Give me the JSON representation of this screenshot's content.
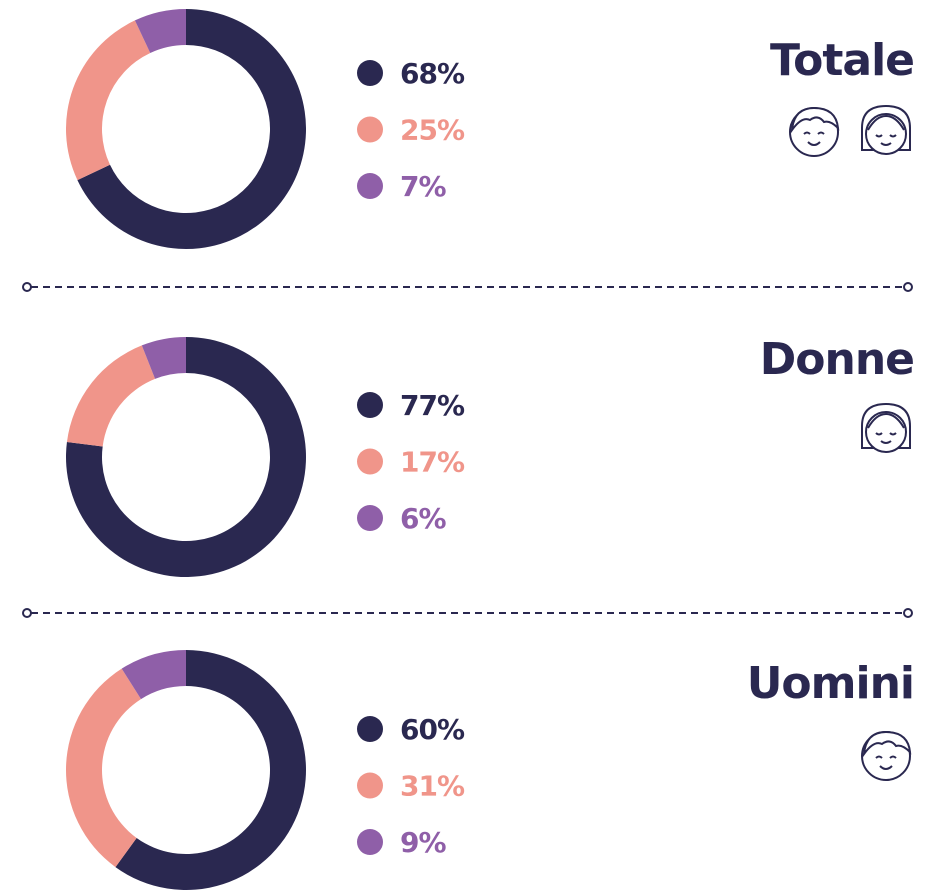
{
  "chart_data": [
    {
      "type": "pie",
      "title": "Totale",
      "values": [
        68,
        25,
        7
      ],
      "value_labels": [
        "68%",
        "25%",
        "7%"
      ],
      "colors": [
        "#2a2850",
        "#f0958a",
        "#8f5fa8"
      ]
    },
    {
      "type": "pie",
      "title": "Donne",
      "values": [
        77,
        17,
        6
      ],
      "value_labels": [
        "77%",
        "17%",
        "6%"
      ],
      "colors": [
        "#2a2850",
        "#f0958a",
        "#8f5fa8"
      ]
    },
    {
      "type": "pie",
      "title": "Uomini",
      "values": [
        60,
        31,
        9
      ],
      "value_labels": [
        "60%",
        "31%",
        "9%"
      ],
      "colors": [
        "#2a2850",
        "#f0958a",
        "#8f5fa8"
      ]
    }
  ]
}
